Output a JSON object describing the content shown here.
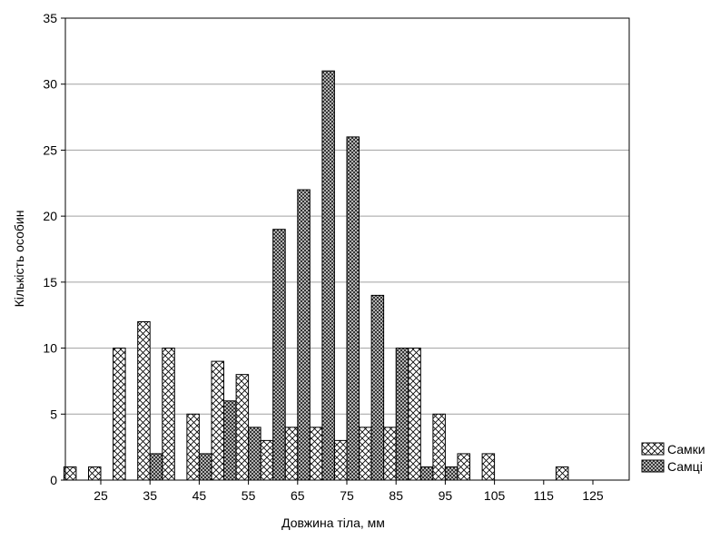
{
  "chart_data": {
    "type": "bar",
    "xlabel": "Довжина тіла, мм",
    "ylabel": "Кількість особин",
    "ylim": [
      0,
      35
    ],
    "yticks": [
      0,
      5,
      10,
      15,
      20,
      25,
      30,
      35
    ],
    "grid": true,
    "legend_position": "right-bottom",
    "categories": [
      20,
      25,
      30,
      35,
      40,
      45,
      50,
      55,
      60,
      65,
      70,
      75,
      80,
      85,
      90,
      95,
      100,
      105,
      110,
      115,
      120,
      125
    ],
    "xtick_labels": [
      "25",
      "35",
      "45",
      "55",
      "65",
      "75",
      "85",
      "95",
      "105",
      "115",
      "125"
    ],
    "xtick_values": [
      25,
      35,
      45,
      55,
      65,
      75,
      85,
      95,
      105,
      115,
      125
    ],
    "series": [
      {
        "name": "Самки",
        "pattern": "crosshatch-sparse",
        "values": [
          1,
          1,
          10,
          12,
          10,
          5,
          9,
          8,
          3,
          4,
          4,
          3,
          4,
          4,
          10,
          5,
          2,
          2,
          0,
          0,
          1,
          0
        ]
      },
      {
        "name": "Самці",
        "pattern": "crosshatch-dense",
        "values": [
          0,
          0,
          0,
          2,
          0,
          2,
          6,
          4,
          19,
          22,
          31,
          26,
          14,
          10,
          1,
          1,
          0,
          0,
          0,
          0,
          0,
          0
        ]
      }
    ]
  }
}
